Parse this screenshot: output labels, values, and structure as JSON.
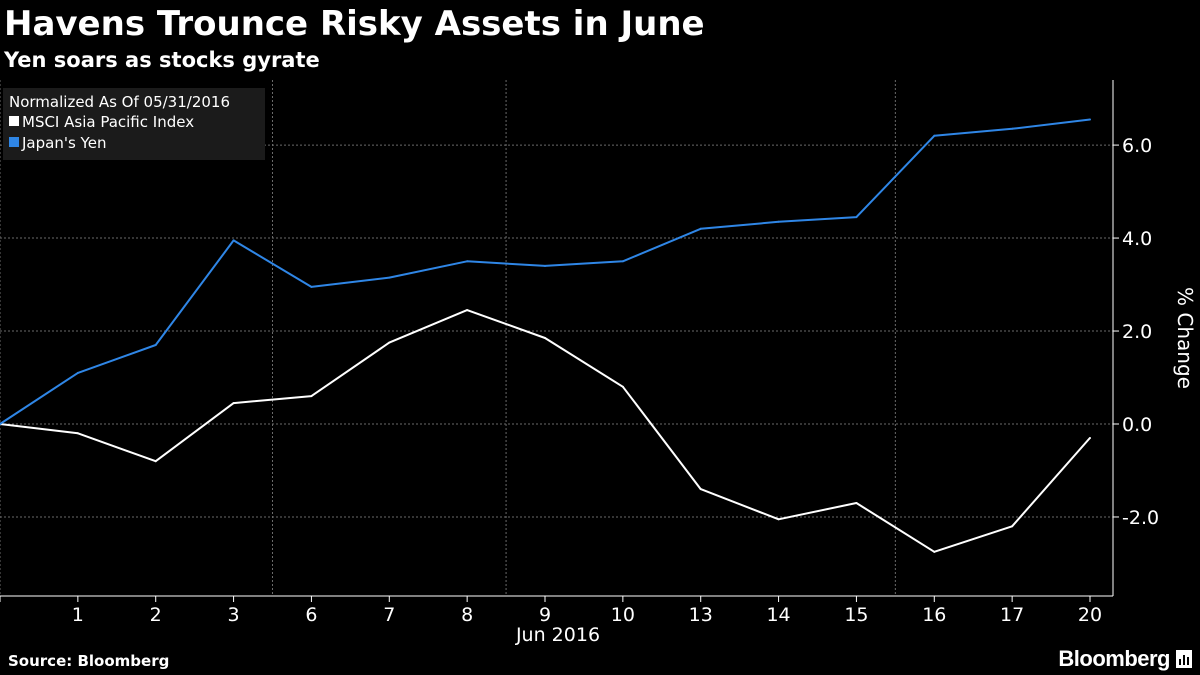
{
  "header": {
    "title": "Havens Trounce Risky Assets in June",
    "subtitle": "Yen soars as stocks gyrate"
  },
  "footer": {
    "source": "Source: Bloomberg",
    "brand": "Bloomberg"
  },
  "colors": {
    "background": "#000000",
    "msci": "#ffffff",
    "yen": "#2f86e6",
    "grid": "#6a6a6a"
  },
  "chart_data": {
    "type": "line",
    "legend_title": "Normalized As Of 05/31/2016",
    "legend_position": "top-left",
    "x_tick_labels": [
      "1",
      "2",
      "3",
      "6",
      "7",
      "8",
      "9",
      "10",
      "13",
      "14",
      "15",
      "16",
      "17",
      "20"
    ],
    "xlabel": "Jun 2016",
    "ylabel": "% Change",
    "y_ticks": [
      -2.0,
      0.0,
      2.0,
      4.0,
      6.0
    ],
    "y_tick_labels": [
      "-2.0",
      "0.0",
      "2.0",
      "4.0",
      "6.0"
    ],
    "ylim": [
      -3.7,
      7.4
    ],
    "grid": true,
    "y_axis_side": "right",
    "x": [
      "2016-05-31",
      "2016-06-01",
      "2016-06-02",
      "2016-06-03",
      "2016-06-06",
      "2016-06-07",
      "2016-06-08",
      "2016-06-09",
      "2016-06-10",
      "2016-06-13",
      "2016-06-14",
      "2016-06-15",
      "2016-06-16",
      "2016-06-17",
      "2016-06-20"
    ],
    "series": [
      {
        "name": "MSCI Asia Pacific Index",
        "color": "#ffffff",
        "values": [
          0.0,
          -0.2,
          -0.8,
          0.45,
          0.6,
          1.75,
          2.45,
          1.85,
          0.8,
          -1.4,
          -2.05,
          -1.7,
          -2.75,
          -2.2,
          -0.3
        ]
      },
      {
        "name": "Japan's Yen",
        "color": "#2f86e6",
        "values": [
          0.0,
          1.1,
          1.7,
          3.95,
          2.95,
          3.15,
          3.5,
          3.4,
          3.5,
          4.2,
          4.35,
          4.45,
          6.2,
          6.35,
          6.55
        ]
      }
    ]
  }
}
